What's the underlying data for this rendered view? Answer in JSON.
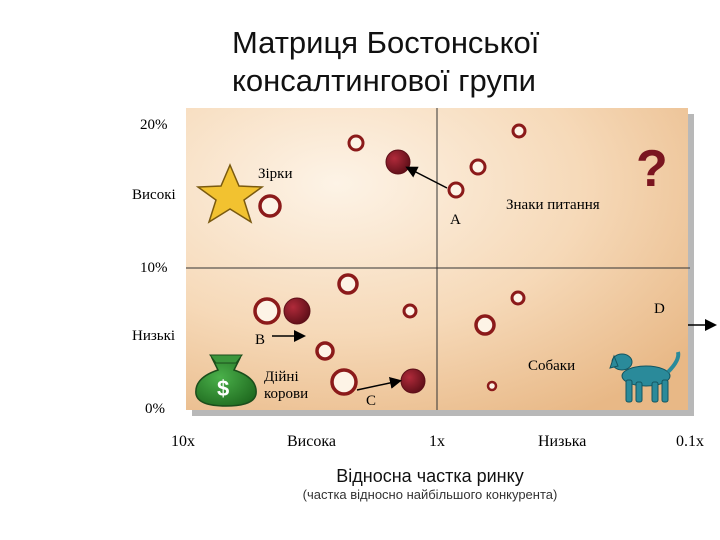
{
  "title": {
    "line1": "Матриця Бостонської",
    "line2": "консалтингової групи"
  },
  "y_axis": {
    "ticks": [
      "20%",
      "10%",
      "0%"
    ],
    "zone_high": "Високі",
    "zone_low": "Низькі"
  },
  "x_axis": {
    "ticks": [
      "10x",
      "Висока",
      "1x",
      "Низька",
      "0.1x"
    ],
    "label": "Відносна частка ринку",
    "sublabel": "(частка відносно найбільшого конкурента)"
  },
  "quadrants": {
    "stars": "Зірки",
    "question_marks": "Знаки питання",
    "question_symbol": "?",
    "cash_cows_line1": "Дійні",
    "cash_cows_line2": "корови",
    "dogs": "Собаки",
    "dollar_symbol": "$"
  },
  "annotations": {
    "a": "A",
    "b": "B",
    "c": "C",
    "d": "D"
  },
  "colors": {
    "background_light": "#fdf3e6",
    "background_dark": "#e8b886",
    "bubble_ring": "#8b1a1a",
    "bubble_fill": "#7a1520",
    "star": "#f2c230",
    "money_bag": "#2f8a2f",
    "dog": "#2a8a9a",
    "question_mark": "#7a1520"
  }
}
